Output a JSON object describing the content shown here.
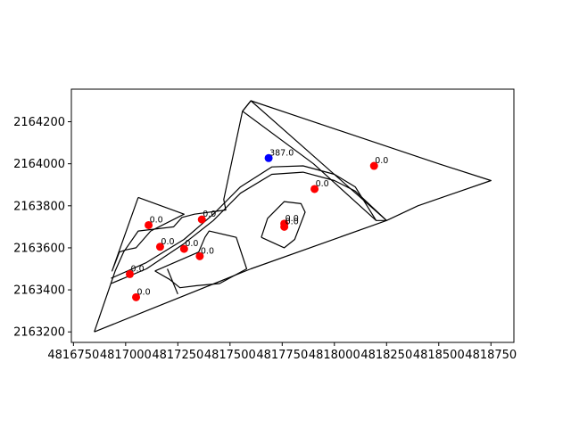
{
  "chart_data": {
    "type": "scatter",
    "title": "",
    "xlabel": "",
    "ylabel": "",
    "xlim": [
      4816740,
      4818860
    ],
    "ylim": [
      2163150,
      2164355
    ],
    "x_ticks": [
      4816750,
      4817000,
      4817250,
      4817500,
      4817750,
      4818000,
      4818250,
      4818500,
      4818750
    ],
    "x_tick_labels": [
      "4816750",
      "4817000",
      "4817250",
      "4817500",
      "4817750",
      "4818000",
      "4818250",
      "4818500",
      "4818750"
    ],
    "y_ticks": [
      2163200,
      2163400,
      2163600,
      2163800,
      2164000,
      2164200
    ],
    "y_tick_labels": [
      "2163200",
      "2163400",
      "2163600",
      "2163800",
      "2164000",
      "2164200"
    ],
    "grid": false,
    "points": [
      {
        "x": 4817685,
        "y": 2164027,
        "label": "387.0",
        "color": "#0000ff"
      },
      {
        "x": 4817110,
        "y": 2163708,
        "label": "0.0",
        "color": "#ff0000"
      },
      {
        "x": 4817365,
        "y": 2163735,
        "label": "0.0",
        "color": "#ff0000"
      },
      {
        "x": 4817165,
        "y": 2163605,
        "label": "0.0",
        "color": "#ff0000"
      },
      {
        "x": 4817280,
        "y": 2163595,
        "label": "0.0",
        "color": "#ff0000"
      },
      {
        "x": 4817355,
        "y": 2163560,
        "label": "0.0",
        "color": "#ff0000"
      },
      {
        "x": 4817020,
        "y": 2163475,
        "label": "0.0",
        "color": "#ff0000"
      },
      {
        "x": 4817050,
        "y": 2163365,
        "label": "0.0",
        "color": "#ff0000"
      },
      {
        "x": 4817760,
        "y": 2163715,
        "label": "0.0",
        "color": "#ff0000"
      },
      {
        "x": 4817760,
        "y": 2163700,
        "label": "0.0",
        "color": "#ff0000"
      },
      {
        "x": 4817905,
        "y": 2163880,
        "label": "0.0",
        "color": "#ff0000"
      },
      {
        "x": 4818190,
        "y": 2163990,
        "label": "0.0",
        "color": "#ff0000"
      }
    ],
    "polygons": [
      [
        [
          4816850,
          2163200
        ],
        [
          4817100,
          2163300
        ],
        [
          4817600,
          2163500
        ],
        [
          4818250,
          2163730
        ],
        [
          4818400,
          2163800
        ],
        [
          4818750,
          2163920
        ],
        [
          4818500,
          2164000
        ],
        [
          4817600,
          2164300
        ],
        [
          4817560,
          2164250
        ],
        [
          4817470,
          2163830
        ],
        [
          4817480,
          2163780
        ],
        [
          4817330,
          2163760
        ],
        [
          4817270,
          2163745
        ],
        [
          4817230,
          2163700
        ],
        [
          4817060,
          2163680
        ],
        [
          4816990,
          2163580
        ],
        [
          4816950,
          2163490
        ],
        [
          4816850,
          2163200
        ]
      ],
      [
        [
          4817060,
          2163840
        ],
        [
          4817280,
          2163760
        ],
        [
          4817120,
          2163680
        ],
        [
          4817050,
          2163600
        ],
        [
          4817000,
          2163590
        ],
        [
          4816970,
          2163580
        ],
        [
          4816935,
          2163490
        ],
        [
          4817060,
          2163840
        ]
      ],
      [
        [
          4817140,
          2163490
        ],
        [
          4817350,
          2163580
        ],
        [
          4817380,
          2163650
        ],
        [
          4817400,
          2163680
        ],
        [
          4817530,
          2163650
        ],
        [
          4817580,
          2163500
        ],
        [
          4817450,
          2163430
        ],
        [
          4817340,
          2163420
        ],
        [
          4817260,
          2163410
        ],
        [
          4817210,
          2163450
        ],
        [
          4817140,
          2163490
        ]
      ],
      [
        [
          4817650,
          2163650
        ],
        [
          4817680,
          2163740
        ],
        [
          4817760,
          2163820
        ],
        [
          4817840,
          2163810
        ],
        [
          4817860,
          2163770
        ],
        [
          4817810,
          2163640
        ],
        [
          4817760,
          2163600
        ],
        [
          4817650,
          2163650
        ]
      ],
      [
        [
          4817560,
          2164250
        ],
        [
          4817600,
          2164300
        ],
        [
          4818250,
          2163730
        ],
        [
          4818200,
          2163730
        ],
        [
          4817900,
          2164000
        ],
        [
          4817560,
          2164250
        ]
      ],
      [
        [
          4816930,
          2163430
        ],
        [
          4817100,
          2163500
        ],
        [
          4817280,
          2163620
        ],
        [
          4817420,
          2163730
        ],
        [
          4817550,
          2163860
        ],
        [
          4817700,
          2163950
        ],
        [
          4817850,
          2163960
        ],
        [
          4818000,
          2163920
        ],
        [
          4818100,
          2163870
        ],
        [
          4818250,
          2163730
        ]
      ],
      [
        [
          4816930,
          2163455
        ],
        [
          4817100,
          2163530
        ],
        [
          4817280,
          2163640
        ],
        [
          4817420,
          2163760
        ],
        [
          4817550,
          2163890
        ],
        [
          4817700,
          2163985
        ],
        [
          4817850,
          2163990
        ],
        [
          4818000,
          2163950
        ],
        [
          4818100,
          2163890
        ],
        [
          4818200,
          2163730
        ]
      ],
      [
        [
          4817200,
          2163500
        ],
        [
          4817250,
          2163380
        ]
      ]
    ]
  }
}
